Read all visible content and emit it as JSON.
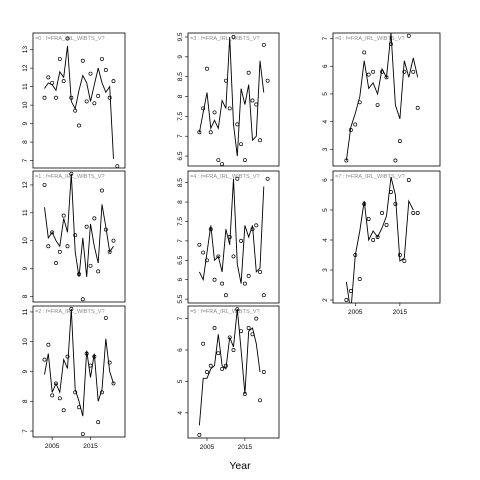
{
  "chart_data": [
    {
      "type": "scatter",
      "panel": 0,
      "title": "=0 : f=FRA_IRL_WIBTS_V?",
      "ylim": [
        6.6,
        13.9
      ],
      "yticks": [
        7,
        8,
        9,
        10,
        11,
        12,
        13
      ],
      "line": [
        [
          2003,
          10.9
        ],
        [
          2004,
          11.2
        ],
        [
          2005,
          11.1
        ],
        [
          2006,
          10.8
        ],
        [
          2007,
          11.8
        ],
        [
          2008,
          11.5
        ],
        [
          2009,
          13.2
        ],
        [
          2010,
          10.2
        ],
        [
          2011,
          9.8
        ],
        [
          2012,
          10.8
        ],
        [
          2013,
          11.6
        ],
        [
          2014,
          11.2
        ],
        [
          2015,
          10.2
        ],
        [
          2016,
          11.1
        ],
        [
          2017,
          12.0
        ],
        [
          2018,
          11.2
        ],
        [
          2019,
          10.7
        ],
        [
          2020,
          11.0
        ],
        [
          2021,
          7.1
        ]
      ],
      "points": [
        [
          2003,
          10.4
        ],
        [
          2004,
          11.5
        ],
        [
          2005,
          11.2
        ],
        [
          2006,
          10.4
        ],
        [
          2007,
          12.5
        ],
        [
          2008,
          11.3
        ],
        [
          2009,
          13.6
        ],
        [
          2010,
          10.4
        ],
        [
          2011,
          9.7
        ],
        [
          2012,
          8.9
        ],
        [
          2013,
          12.4
        ],
        [
          2014,
          10.2
        ],
        [
          2015,
          11.7
        ],
        [
          2016,
          10.1
        ],
        [
          2017,
          10.5
        ],
        [
          2018,
          12.5
        ],
        [
          2019,
          11.9
        ],
        [
          2020,
          10.4
        ],
        [
          2021,
          11.3
        ],
        [
          2022,
          6.7
        ]
      ]
    },
    {
      "type": "scatter",
      "panel": 1,
      "title": "=1 : f=FRA_IRL_WIBTS_V?",
      "ylim": [
        7.8,
        12.5
      ],
      "yticks": [
        8,
        9,
        10,
        11,
        12
      ],
      "line": [
        [
          2003,
          11.2
        ],
        [
          2004,
          10.1
        ],
        [
          2005,
          10.3
        ],
        [
          2006,
          10.0
        ],
        [
          2007,
          9.8
        ],
        [
          2008,
          10.8
        ],
        [
          2009,
          10.3
        ],
        [
          2010,
          12.4
        ],
        [
          2011,
          9.6
        ],
        [
          2012,
          8.7
        ],
        [
          2013,
          10.1
        ],
        [
          2014,
          8.7
        ],
        [
          2015,
          10.6
        ],
        [
          2016,
          9.8
        ],
        [
          2017,
          9.2
        ],
        [
          2018,
          11.3
        ],
        [
          2019,
          10.5
        ],
        [
          2020,
          9.6
        ],
        [
          2021,
          9.8
        ]
      ],
      "points": [
        [
          2003,
          12.0
        ],
        [
          2004,
          9.8
        ],
        [
          2005,
          10.3
        ],
        [
          2006,
          9.2
        ],
        [
          2007,
          9.6
        ],
        [
          2008,
          10.9
        ],
        [
          2009,
          9.8
        ],
        [
          2010,
          12.4
        ],
        [
          2011,
          10.2
        ],
        [
          2012,
          8.8
        ],
        [
          2013,
          7.9
        ],
        [
          2014,
          10.5
        ],
        [
          2015,
          9.1
        ],
        [
          2016,
          10.8
        ],
        [
          2017,
          8.9
        ],
        [
          2018,
          11.8
        ],
        [
          2019,
          10.4
        ],
        [
          2020,
          9.6
        ],
        [
          2021,
          10.0
        ]
      ]
    },
    {
      "type": "scatter",
      "panel": 2,
      "title": "=2 : f=FRA_IRL_WIBTS_V?",
      "ylim": [
        6.8,
        11.2
      ],
      "yticks": [
        7,
        8,
        9,
        10,
        11
      ],
      "line": [
        [
          2003,
          8.9
        ],
        [
          2004,
          9.6
        ],
        [
          2005,
          8.3
        ],
        [
          2006,
          8.6
        ],
        [
          2007,
          8.3
        ],
        [
          2008,
          9.4
        ],
        [
          2009,
          9.1
        ],
        [
          2010,
          11.1
        ],
        [
          2011,
          8.4
        ],
        [
          2012,
          8.0
        ],
        [
          2013,
          7.5
        ],
        [
          2014,
          9.7
        ],
        [
          2015,
          8.8
        ],
        [
          2016,
          9.6
        ],
        [
          2017,
          8.0
        ],
        [
          2018,
          8.4
        ],
        [
          2019,
          10.1
        ],
        [
          2020,
          9.0
        ],
        [
          2021,
          8.6
        ]
      ],
      "points": [
        [
          2003,
          9.4
        ],
        [
          2004,
          9.9
        ],
        [
          2005,
          8.2
        ],
        [
          2006,
          8.6
        ],
        [
          2007,
          8.1
        ],
        [
          2008,
          7.7
        ],
        [
          2009,
          9.5
        ],
        [
          2010,
          11.1
        ],
        [
          2011,
          8.3
        ],
        [
          2012,
          7.8
        ],
        [
          2013,
          6.9
        ],
        [
          2014,
          9.6
        ],
        [
          2015,
          9.2
        ],
        [
          2016,
          9.5
        ],
        [
          2017,
          7.3
        ],
        [
          2018,
          8.3
        ],
        [
          2019,
          10.8
        ],
        [
          2020,
          9.3
        ],
        [
          2021,
          8.6
        ]
      ]
    },
    {
      "type": "scatter",
      "panel": 3,
      "title": "=3 : f=FRA_IRL_WIBTS_V?",
      "ylim": [
        6.25,
        9.6
      ],
      "yticks": [
        6.5,
        7.0,
        7.5,
        8.0,
        8.5,
        9.0,
        9.5
      ],
      "line": [
        [
          2003,
          7.1
        ],
        [
          2004,
          7.6
        ],
        [
          2005,
          8.1
        ],
        [
          2006,
          7.2
        ],
        [
          2007,
          7.4
        ],
        [
          2008,
          7.2
        ],
        [
          2009,
          7.9
        ],
        [
          2010,
          7.7
        ],
        [
          2011,
          9.5
        ],
        [
          2012,
          7.3
        ],
        [
          2013,
          6.5
        ],
        [
          2014,
          8.2
        ],
        [
          2015,
          7.8
        ],
        [
          2016,
          8.3
        ],
        [
          2017,
          6.9
        ],
        [
          2018,
          7.0
        ],
        [
          2019,
          8.9
        ],
        [
          2020,
          8.1
        ]
      ],
      "points": [
        [
          2003,
          7.1
        ],
        [
          2004,
          7.7
        ],
        [
          2005,
          8.7
        ],
        [
          2006,
          7.1
        ],
        [
          2007,
          7.6
        ],
        [
          2008,
          6.4
        ],
        [
          2009,
          6.3
        ],
        [
          2010,
          8.4
        ],
        [
          2011,
          7.7
        ],
        [
          2012,
          9.5
        ],
        [
          2013,
          7.3
        ],
        [
          2014,
          6.8
        ],
        [
          2015,
          6.4
        ],
        [
          2016,
          8.6
        ],
        [
          2017,
          7.9
        ],
        [
          2018,
          7.8
        ],
        [
          2019,
          6.9
        ],
        [
          2020,
          9.3
        ],
        [
          2021,
          8.4
        ]
      ]
    },
    {
      "type": "scatter",
      "panel": 4,
      "title": "=4 : f=FRA_IRL_WIBTS_V?",
      "ylim": [
        5.4,
        8.8
      ],
      "yticks": [
        5.5,
        6.0,
        6.5,
        7.0,
        7.5,
        8.0,
        8.5
      ],
      "line": [
        [
          2003,
          6.2
        ],
        [
          2004,
          6.0
        ],
        [
          2005,
          6.7
        ],
        [
          2006,
          7.4
        ],
        [
          2007,
          6.5
        ],
        [
          2008,
          6.6
        ],
        [
          2009,
          6.2
        ],
        [
          2010,
          7.3
        ],
        [
          2011,
          6.9
        ],
        [
          2012,
          8.6
        ],
        [
          2013,
          6.4
        ],
        [
          2014,
          5.9
        ],
        [
          2015,
          7.4
        ],
        [
          2016,
          7.1
        ],
        [
          2017,
          7.4
        ],
        [
          2018,
          6.2
        ],
        [
          2019,
          6.3
        ],
        [
          2020,
          8.4
        ]
      ],
      "points": [
        [
          2003,
          6.9
        ],
        [
          2004,
          6.7
        ],
        [
          2005,
          6.5
        ],
        [
          2006,
          7.3
        ],
        [
          2007,
          6.0
        ],
        [
          2008,
          6.6
        ],
        [
          2009,
          5.9
        ],
        [
          2010,
          5.6
        ],
        [
          2011,
          7.1
        ],
        [
          2012,
          6.6
        ],
        [
          2013,
          8.6
        ],
        [
          2014,
          7.0
        ],
        [
          2015,
          5.9
        ],
        [
          2016,
          6.1
        ],
        [
          2017,
          7.3
        ],
        [
          2018,
          7.4
        ],
        [
          2019,
          6.2
        ],
        [
          2020,
          5.6
        ],
        [
          2021,
          8.6
        ]
      ]
    },
    {
      "type": "scatter",
      "panel": 5,
      "title": "=5 : f=FRA_IRL_WIBTS_V?",
      "ylim": [
        3.2,
        7.4
      ],
      "yticks": [
        4,
        5,
        6,
        7
      ],
      "line": [
        [
          2003,
          3.6
        ],
        [
          2004,
          5.1
        ],
        [
          2005,
          5.1
        ],
        [
          2006,
          5.4
        ],
        [
          2007,
          5.5
        ],
        [
          2008,
          6.5
        ],
        [
          2009,
          5.5
        ],
        [
          2010,
          5.4
        ],
        [
          2011,
          6.4
        ],
        [
          2012,
          6.1
        ],
        [
          2013,
          7.3
        ],
        [
          2014,
          6.0
        ],
        [
          2015,
          4.6
        ],
        [
          2016,
          6.6
        ],
        [
          2017,
          6.7
        ],
        [
          2018,
          6.2
        ],
        [
          2019,
          5.3
        ]
      ],
      "points": [
        [
          2003,
          3.3
        ],
        [
          2004,
          6.2
        ],
        [
          2005,
          5.3
        ],
        [
          2006,
          5.5
        ],
        [
          2007,
          6.7
        ],
        [
          2008,
          5.9
        ],
        [
          2009,
          5.4
        ],
        [
          2010,
          5.5
        ],
        [
          2011,
          6.4
        ],
        [
          2012,
          6.0
        ],
        [
          2013,
          7.3
        ],
        [
          2014,
          6.6
        ],
        [
          2015,
          4.6
        ],
        [
          2016,
          6.7
        ],
        [
          2017,
          6.5
        ],
        [
          2018,
          7.0
        ],
        [
          2019,
          4.4
        ],
        [
          2020,
          5.3
        ]
      ]
    },
    {
      "type": "scatter",
      "panel": 6,
      "title": "=6 : f=FRA_IRL_WIBTS_V?",
      "ylim": [
        2.4,
        7.2
      ],
      "yticks": [
        3,
        4,
        5,
        6,
        7
      ],
      "line": [
        [
          2003,
          2.6
        ],
        [
          2004,
          3.8
        ],
        [
          2005,
          4.3
        ],
        [
          2006,
          4.9
        ],
        [
          2007,
          6.2
        ],
        [
          2008,
          5.2
        ],
        [
          2009,
          5.4
        ],
        [
          2010,
          5.0
        ],
        [
          2011,
          5.9
        ],
        [
          2012,
          5.6
        ],
        [
          2013,
          7.2
        ],
        [
          2014,
          4.6
        ],
        [
          2015,
          4.1
        ],
        [
          2016,
          6.2
        ],
        [
          2017,
          5.6
        ],
        [
          2018,
          6.3
        ],
        [
          2019,
          5.6
        ]
      ],
      "points": [
        [
          2003,
          2.6
        ],
        [
          2004,
          3.7
        ],
        [
          2005,
          3.9
        ],
        [
          2006,
          4.7
        ],
        [
          2007,
          6.5
        ],
        [
          2008,
          5.7
        ],
        [
          2009,
          5.8
        ],
        [
          2010,
          4.6
        ],
        [
          2011,
          5.8
        ],
        [
          2012,
          5.6
        ],
        [
          2013,
          6.8
        ],
        [
          2014,
          2.6
        ],
        [
          2015,
          3.3
        ],
        [
          2016,
          5.8
        ],
        [
          2017,
          7.1
        ],
        [
          2018,
          5.8
        ],
        [
          2019,
          4.5
        ]
      ]
    },
    {
      "type": "scatter",
      "panel": 7,
      "title": "=7 : f=FRA_IRL_WIBTS_V?",
      "ylim": [
        1.9,
        6.3
      ],
      "yticks": [
        2,
        3,
        4,
        5,
        6
      ],
      "line": [
        [
          2003,
          2.6
        ],
        [
          2004,
          1.6
        ],
        [
          2005,
          3.5
        ],
        [
          2006,
          4.3
        ],
        [
          2007,
          5.3
        ],
        [
          2008,
          4.0
        ],
        [
          2009,
          4.3
        ],
        [
          2010,
          4.1
        ],
        [
          2011,
          4.4
        ],
        [
          2012,
          4.8
        ],
        [
          2013,
          6.1
        ],
        [
          2014,
          5.5
        ],
        [
          2015,
          3.3
        ],
        [
          2016,
          3.4
        ],
        [
          2017,
          5.3
        ],
        [
          2018,
          5.0
        ]
      ],
      "points": [
        [
          2003,
          2.0
        ],
        [
          2004,
          2.3
        ],
        [
          2005,
          3.5
        ],
        [
          2006,
          2.7
        ],
        [
          2007,
          5.2
        ],
        [
          2008,
          4.7
        ],
        [
          2009,
          4.0
        ],
        [
          2010,
          4.1
        ],
        [
          2011,
          4.9
        ],
        [
          2012,
          4.5
        ],
        [
          2013,
          5.6
        ],
        [
          2014,
          5.2
        ],
        [
          2015,
          3.5
        ],
        [
          2016,
          3.3
        ],
        [
          2017,
          6.0
        ],
        [
          2018,
          4.9
        ],
        [
          2019,
          4.9
        ]
      ]
    }
  ],
  "xaxis": {
    "label": "Year",
    "range": [
      2000,
      2024
    ],
    "ticks": [
      2005,
      2015
    ]
  }
}
